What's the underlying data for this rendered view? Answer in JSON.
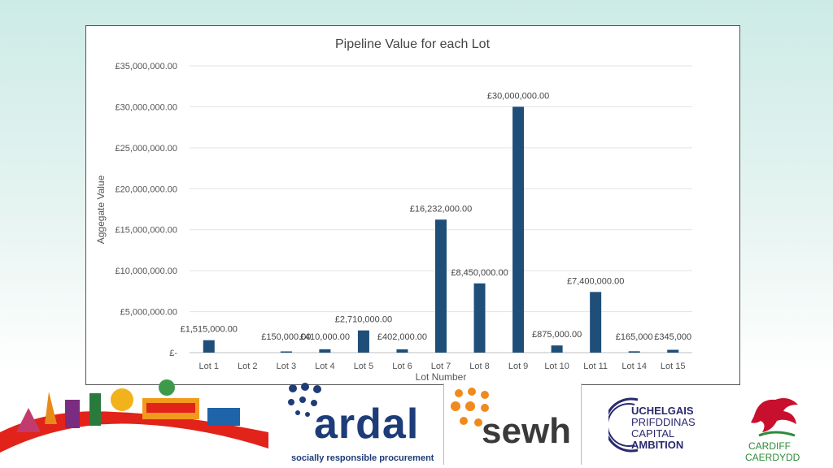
{
  "chart_data": {
    "type": "bar",
    "title": "Pipeline Value for each Lot",
    "xlabel": "Lot Number",
    "ylabel": "Aggegate Value",
    "categories": [
      "Lot  1",
      "Lot  2",
      "Lot  3",
      "Lot  4",
      "Lot  5",
      "Lot  6",
      "Lot 7",
      "Lot  8",
      "Lot  9",
      "Lot 10",
      "Lot 11",
      "Lot 14",
      "Lot 15"
    ],
    "values": [
      1515000,
      0,
      150000,
      410000,
      2710000,
      402000,
      16232000,
      8450000,
      30000000,
      875000,
      7400000,
      165000,
      345000
    ],
    "data_labels": [
      "£1,515,000.00",
      "",
      "£150,000.00",
      "£410,000.00",
      "£2,710,000.00",
      "£402,000.00",
      "£16,232,000.00",
      "£8,450,000.00",
      "£30,000,000.00",
      "£875,000.00",
      "£7,400,000.00",
      "£165,000",
      "£345,000"
    ],
    "yticks": [
      0,
      5000000,
      10000000,
      15000000,
      20000000,
      25000000,
      30000000,
      35000000
    ],
    "ytick_labels": [
      "£-",
      "£5,000,000.00",
      "£10,000,000.00",
      "£15,000,000.00",
      "£20,000,000.00",
      "£25,000,000.00",
      "£30,000,000.00",
      "£35,000,000.00"
    ],
    "ylim": [
      0,
      35000000
    ],
    "grid": true,
    "legend": "none",
    "bar_color": "#1f4e79"
  },
  "logos": {
    "ardal_name": "ardal",
    "ardal_tagline": "socially responsible procurement",
    "sewh_name": "sewh",
    "ccr_line1": "UCHELGAIS",
    "ccr_line2": "PRIFDDINAS",
    "ccr_line3": "CAPITAL",
    "ccr_line4": "AMBITION",
    "cardiff_line1": "CARDIFF",
    "cardiff_line2": "CAERDYDD"
  },
  "colors": {
    "ardal_blue": "#1d3c78",
    "sewh_orange": "#f08a1c",
    "sewh_grey": "#3a3a3a",
    "ccr_purple": "#2a2a6e",
    "cardiff_red": "#c8102e",
    "cardiff_green": "#2e8b3a"
  }
}
